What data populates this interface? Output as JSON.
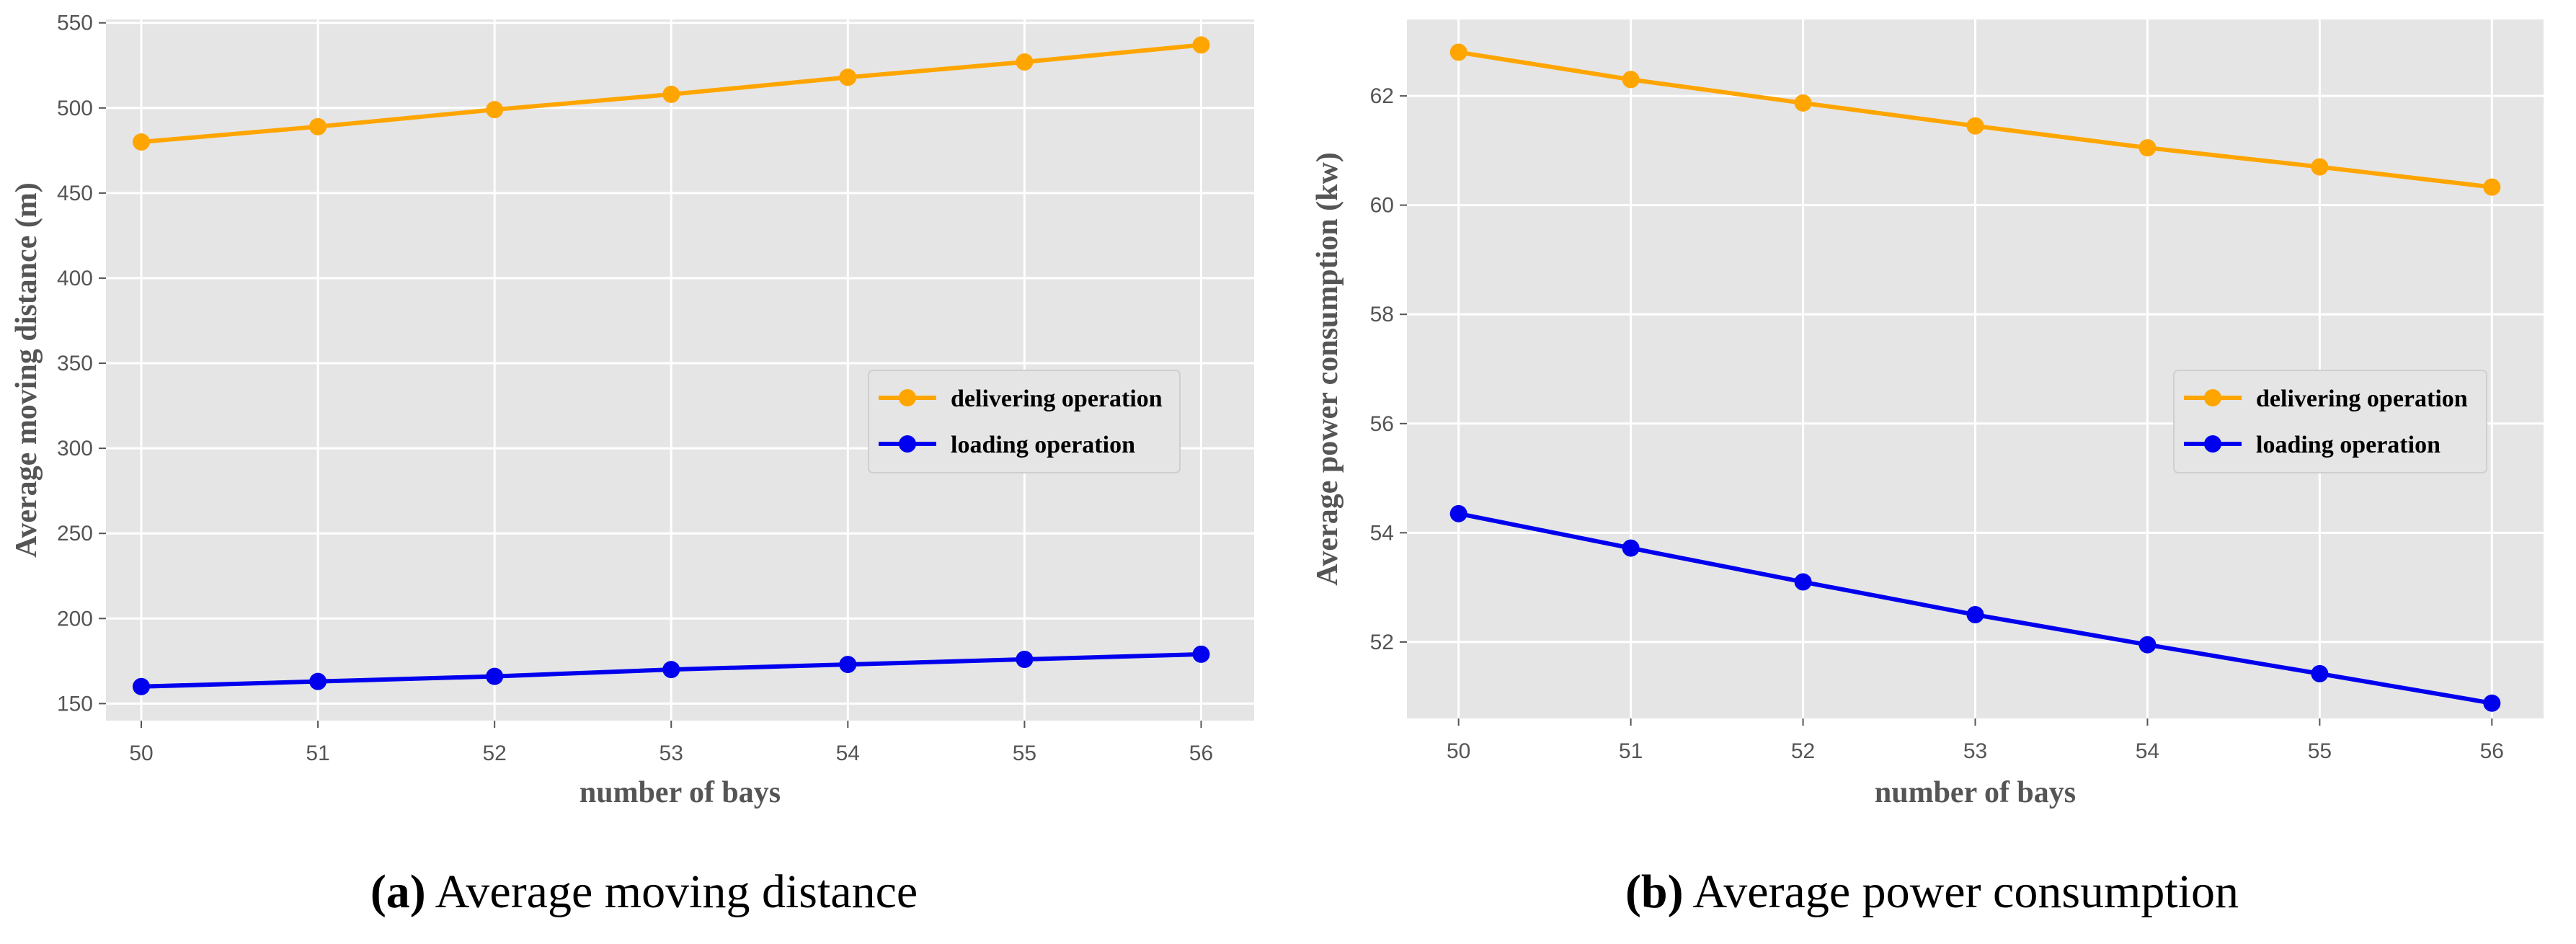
{
  "chart_data": [
    {
      "type": "line",
      "xlabel": "number of bays",
      "ylabel": "Average moving distance  (m)",
      "x": [
        50,
        51,
        52,
        53,
        54,
        55,
        56
      ],
      "xlim": [
        49.8,
        56.3
      ],
      "ylim": [
        140,
        552
      ],
      "yticks": [
        150,
        200,
        250,
        300,
        350,
        400,
        450,
        500,
        550
      ],
      "grid": true,
      "legend_position": "center-right",
      "series": [
        {
          "name": "delivering operation",
          "color": "#FFA500",
          "values": [
            480,
            489,
            499,
            508,
            518,
            527,
            537
          ]
        },
        {
          "name": "loading operation",
          "color": "#0000EE",
          "values": [
            160,
            163,
            166,
            170,
            173,
            176,
            179
          ]
        }
      ],
      "caption": {
        "letter": "(a)",
        "text": "Average moving distance"
      }
    },
    {
      "type": "line",
      "xlabel": "number of bays",
      "ylabel": "Average power consumption (kw)",
      "x": [
        50,
        51,
        52,
        53,
        54,
        55,
        56
      ],
      "xlim": [
        49.7,
        56.3
      ],
      "ylim": [
        50.6,
        63.4
      ],
      "yticks": [
        52,
        54,
        56,
        58,
        60,
        62
      ],
      "grid": true,
      "legend_position": "center-right",
      "series": [
        {
          "name": "delivering operation",
          "color": "#FFA500",
          "values": [
            62.8,
            62.3,
            61.87,
            61.45,
            61.05,
            60.7,
            60.33
          ]
        },
        {
          "name": "loading operation",
          "color": "#0000EE",
          "values": [
            54.35,
            53.72,
            53.1,
            52.5,
            51.95,
            51.42,
            50.88
          ]
        }
      ],
      "caption": {
        "letter": "(b)",
        "text": "Average power consumption"
      }
    }
  ]
}
